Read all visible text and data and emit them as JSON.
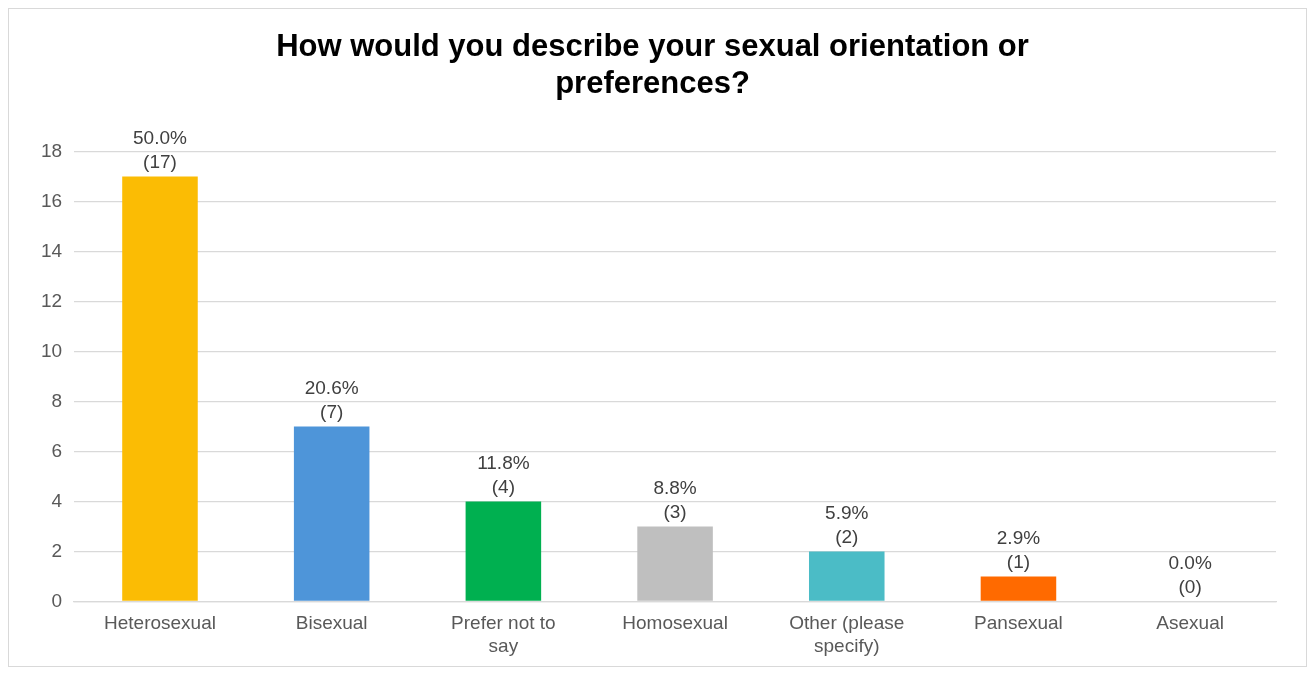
{
  "chart_data": {
    "type": "bar",
    "title": "How would you describe your sexual orientation or preferences?",
    "categories": [
      "Heterosexual",
      "Bisexual",
      "Prefer not to say",
      "Homosexual",
      "Other (please specify)",
      "Pansexual",
      "Asexual"
    ],
    "values": [
      17,
      7,
      4,
      3,
      2,
      1,
      0
    ],
    "colors": [
      "#fbbc04",
      "#4e95d9",
      "#00b050",
      "#bfbfbf",
      "#4bbcc6",
      "#ff6a00",
      "#7f7f7f"
    ],
    "value_labels": [
      "50.0% (17)",
      "20.6% (7)",
      "11.8% (4)",
      "8.8% (3)",
      "5.9% (2)",
      "2.9% (1)",
      "0.0% (0)"
    ],
    "ylim": [
      0,
      18
    ],
    "yticks": [
      0,
      2,
      4,
      6,
      8,
      10,
      12,
      14,
      16,
      18
    ],
    "grid": "y",
    "legend": false
  }
}
